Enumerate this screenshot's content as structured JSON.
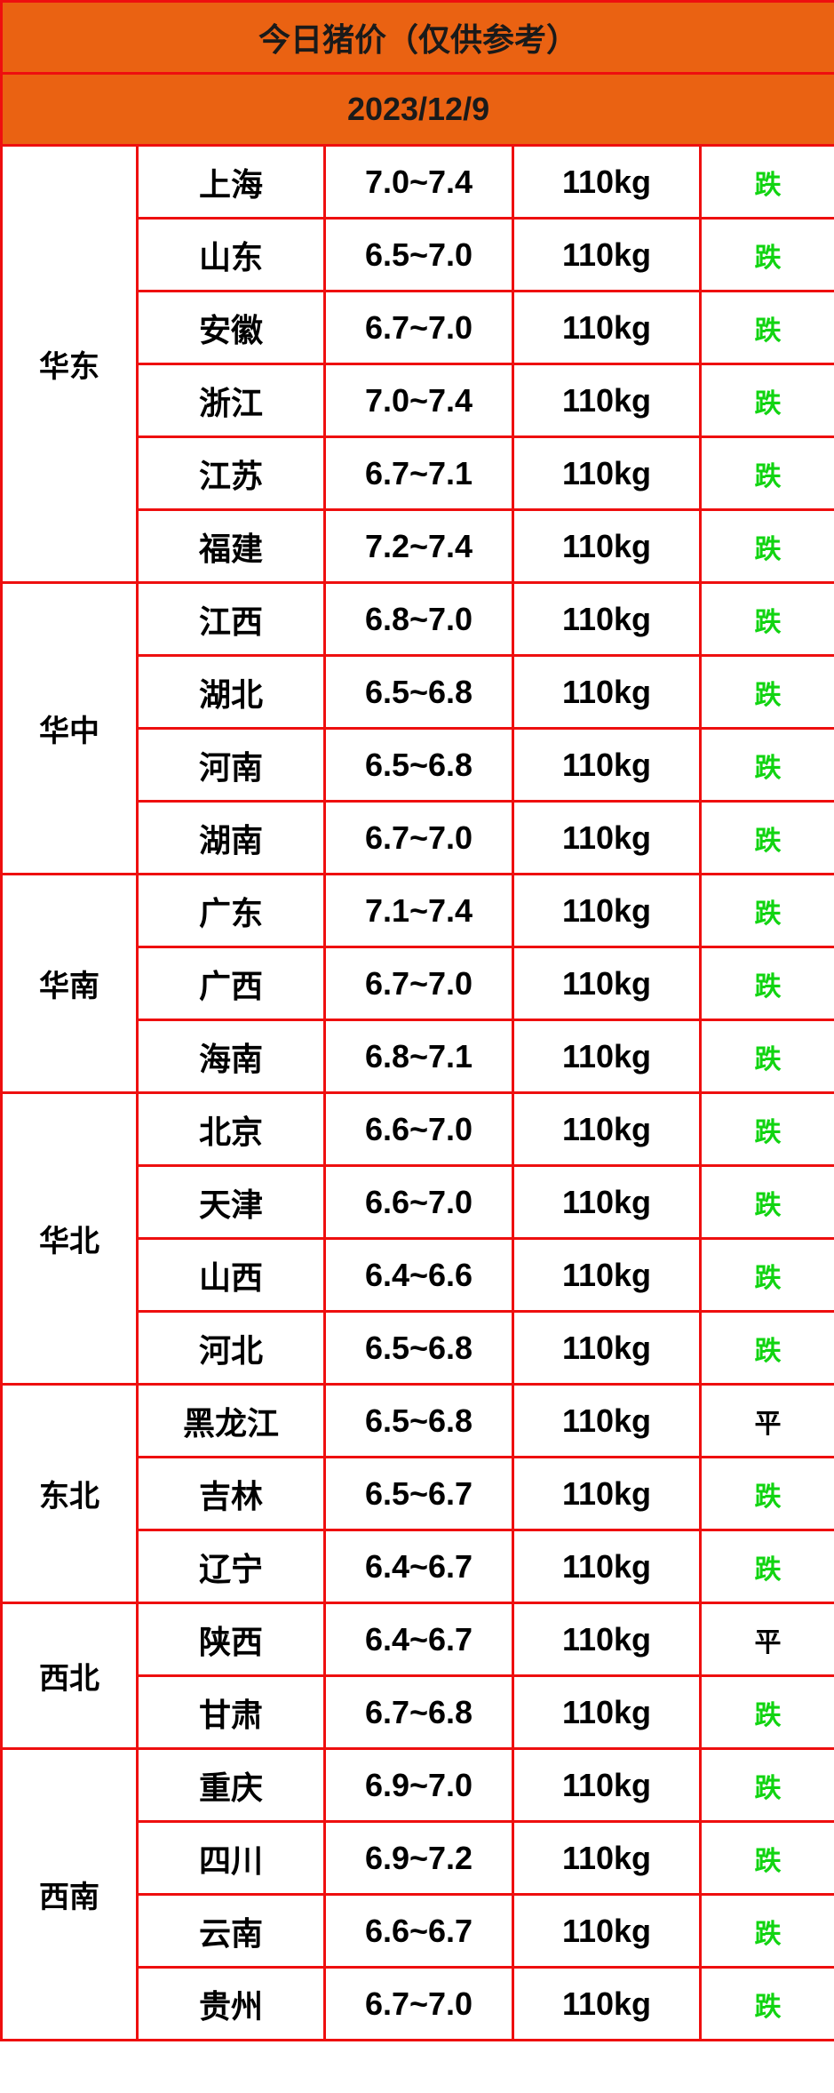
{
  "title": "今日猪价（仅供参考）",
  "date": "2023/12/9",
  "colors": {
    "header_bg": "#ea6212",
    "border": "#ee0f0f",
    "down": "#11d411",
    "flat": "#000000"
  },
  "groups": [
    {
      "region": "华东",
      "rows": [
        {
          "province": "上海",
          "price": "7.0~7.4",
          "weight": "110kg",
          "trend": "跌"
        },
        {
          "province": "山东",
          "price": "6.5~7.0",
          "weight": "110kg",
          "trend": "跌"
        },
        {
          "province": "安徽",
          "price": "6.7~7.0",
          "weight": "110kg",
          "trend": "跌"
        },
        {
          "province": "浙江",
          "price": "7.0~7.4",
          "weight": "110kg",
          "trend": "跌"
        },
        {
          "province": "江苏",
          "price": "6.7~7.1",
          "weight": "110kg",
          "trend": "跌"
        },
        {
          "province": "福建",
          "price": "7.2~7.4",
          "weight": "110kg",
          "trend": "跌"
        }
      ]
    },
    {
      "region": "华中",
      "rows": [
        {
          "province": "江西",
          "price": "6.8~7.0",
          "weight": "110kg",
          "trend": "跌"
        },
        {
          "province": "湖北",
          "price": "6.5~6.8",
          "weight": "110kg",
          "trend": "跌"
        },
        {
          "province": "河南",
          "price": "6.5~6.8",
          "weight": "110kg",
          "trend": "跌"
        },
        {
          "province": "湖南",
          "price": "6.7~7.0",
          "weight": "110kg",
          "trend": "跌"
        }
      ]
    },
    {
      "region": "华南",
      "rows": [
        {
          "province": "广东",
          "price": "7.1~7.4",
          "weight": "110kg",
          "trend": "跌"
        },
        {
          "province": "广西",
          "price": "6.7~7.0",
          "weight": "110kg",
          "trend": "跌"
        },
        {
          "province": "海南",
          "price": "6.8~7.1",
          "weight": "110kg",
          "trend": "跌"
        }
      ]
    },
    {
      "region": "华北",
      "rows": [
        {
          "province": "北京",
          "price": "6.6~7.0",
          "weight": "110kg",
          "trend": "跌"
        },
        {
          "province": "天津",
          "price": "6.6~7.0",
          "weight": "110kg",
          "trend": "跌"
        },
        {
          "province": "山西",
          "price": "6.4~6.6",
          "weight": "110kg",
          "trend": "跌"
        },
        {
          "province": "河北",
          "price": "6.5~6.8",
          "weight": "110kg",
          "trend": "跌"
        }
      ]
    },
    {
      "region": "东北",
      "rows": [
        {
          "province": "黑龙江",
          "price": "6.5~6.8",
          "weight": "110kg",
          "trend": "平"
        },
        {
          "province": "吉林",
          "price": "6.5~6.7",
          "weight": "110kg",
          "trend": "跌"
        },
        {
          "province": "辽宁",
          "price": "6.4~6.7",
          "weight": "110kg",
          "trend": "跌"
        }
      ]
    },
    {
      "region": "西北",
      "rows": [
        {
          "province": "陕西",
          "price": "6.4~6.7",
          "weight": "110kg",
          "trend": "平"
        },
        {
          "province": "甘肃",
          "price": "6.7~6.8",
          "weight": "110kg",
          "trend": "跌"
        }
      ]
    },
    {
      "region": "西南",
      "rows": [
        {
          "province": "重庆",
          "price": "6.9~7.0",
          "weight": "110kg",
          "trend": "跌"
        },
        {
          "province": "四川",
          "price": "6.9~7.2",
          "weight": "110kg",
          "trend": "跌"
        },
        {
          "province": "云南",
          "price": "6.6~6.7",
          "weight": "110kg",
          "trend": "跌"
        },
        {
          "province": "贵州",
          "price": "6.7~7.0",
          "weight": "110kg",
          "trend": "跌"
        }
      ]
    }
  ]
}
